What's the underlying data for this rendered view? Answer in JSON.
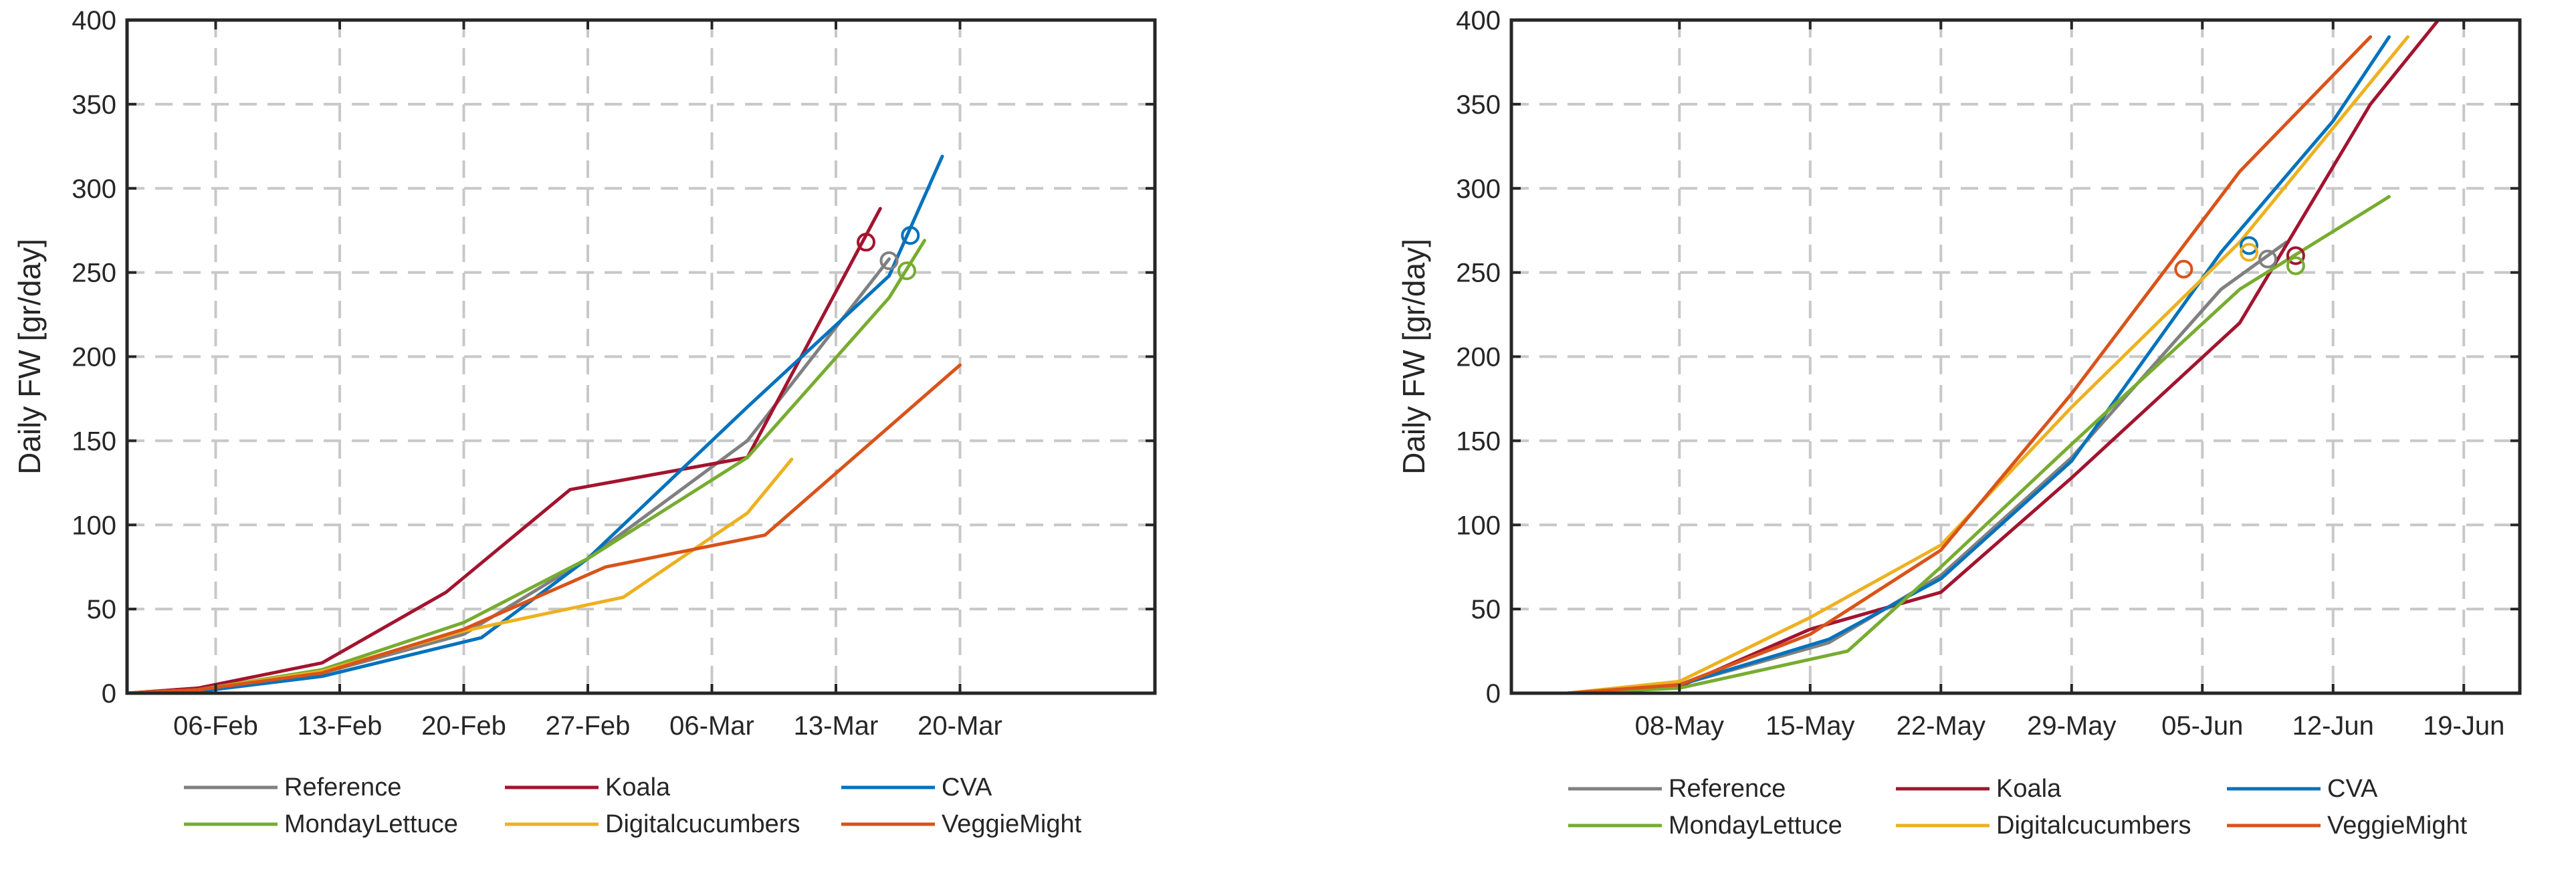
{
  "chart_data": [
    {
      "type": "line",
      "ylabel": "Daily FW [gr/day]",
      "xlabel": "",
      "ylim": [
        0,
        400
      ],
      "yticks": [
        0,
        50,
        100,
        150,
        200,
        250,
        300,
        350,
        400
      ],
      "xlim": [
        -5,
        53
      ],
      "xticks": [
        {
          "day": 0,
          "label": "06-Feb"
        },
        {
          "day": 7,
          "label": "13-Feb"
        },
        {
          "day": 14,
          "label": "20-Feb"
        },
        {
          "day": 21,
          "label": "27-Feb"
        },
        {
          "day": 28,
          "label": "06-Mar"
        },
        {
          "day": 35,
          "label": "13-Mar"
        },
        {
          "day": 42,
          "label": "20-Mar"
        }
      ],
      "grid": true,
      "x_units": "days since 06-Feb",
      "series": [
        {
          "name": "Reference",
          "color": "#808080",
          "x": [
            -5,
            -1,
            6,
            14,
            21,
            30,
            38
          ],
          "y": [
            0,
            2,
            12,
            35,
            80,
            150,
            258
          ],
          "marker": {
            "x": 38,
            "y": 257
          }
        },
        {
          "name": "Koala",
          "color": "#a2142f",
          "x": [
            -5,
            -1,
            6,
            13,
            20,
            30,
            37.5
          ],
          "y": [
            0,
            3,
            18,
            60,
            121,
            140,
            288
          ],
          "marker": {
            "x": 36.7,
            "y": 268
          }
        },
        {
          "name": "CVA",
          "color": "#0072bd",
          "x": [
            -5,
            -1,
            6,
            15,
            21,
            30,
            38,
            41
          ],
          "y": [
            0,
            1,
            10,
            33,
            80,
            170,
            248,
            319
          ],
          "marker": {
            "x": 39.2,
            "y": 272
          }
        },
        {
          "name": "MondayLettuce",
          "color": "#77ac30",
          "x": [
            -5,
            -1,
            6,
            14,
            21,
            30,
            38,
            40
          ],
          "y": [
            0,
            2,
            14,
            42,
            80,
            140,
            235,
            269
          ],
          "marker": {
            "x": 39,
            "y": 251
          }
        },
        {
          "name": "Digitalcucumbers",
          "color": "#edb120",
          "x": [
            -5,
            -1,
            6,
            14,
            23,
            30,
            32.5
          ],
          "y": [
            0,
            2,
            13,
            37,
            57,
            107,
            139
          ],
          "marker": null
        },
        {
          "name": "VeggieMight",
          "color": "#d95319",
          "x": [
            -5,
            -1,
            6,
            14,
            22,
            31,
            42
          ],
          "y": [
            0,
            2,
            12,
            38,
            75,
            94,
            195
          ],
          "marker": null
        }
      ]
    },
    {
      "type": "line",
      "ylabel": "Daily FW [gr/day]",
      "xlabel": "",
      "ylim": [
        0,
        400
      ],
      "yticks": [
        0,
        50,
        100,
        150,
        200,
        250,
        300,
        350,
        400
      ],
      "xlim": [
        -9,
        45
      ],
      "xticks": [
        {
          "day": 0,
          "label": "08-May"
        },
        {
          "day": 7,
          "label": "15-May"
        },
        {
          "day": 14,
          "label": "22-May"
        },
        {
          "day": 21,
          "label": "29-May"
        },
        {
          "day": 28,
          "label": "05-Jun"
        },
        {
          "day": 35,
          "label": "12-Jun"
        },
        {
          "day": 42,
          "label": "19-Jun"
        }
      ],
      "grid": true,
      "x_units": "days since 08-May",
      "series": [
        {
          "name": "Reference",
          "color": "#808080",
          "x": [
            -6,
            0,
            8,
            14,
            21,
            29,
            32.5
          ],
          "y": [
            0,
            5,
            30,
            70,
            140,
            240,
            268
          ],
          "marker": {
            "x": 31.5,
            "y": 258
          }
        },
        {
          "name": "Koala",
          "color": "#a2142f",
          "x": [
            -6,
            0,
            7,
            14,
            21,
            30,
            37,
            41
          ],
          "y": [
            0,
            4,
            38,
            60,
            128,
            220,
            350,
            405
          ],
          "marker": {
            "x": 33,
            "y": 260
          }
        },
        {
          "name": "CVA",
          "color": "#0072bd",
          "x": [
            -6,
            0,
            8,
            14,
            21,
            29,
            35,
            38
          ],
          "y": [
            0,
            5,
            32,
            68,
            138,
            262,
            340,
            390
          ],
          "marker": {
            "x": 30.5,
            "y": 266
          }
        },
        {
          "name": "MondayLettuce",
          "color": "#77ac30",
          "x": [
            -6,
            0,
            9,
            14,
            21,
            30,
            38
          ],
          "y": [
            0,
            3,
            25,
            75,
            148,
            240,
            295
          ],
          "marker": {
            "x": 33,
            "y": 254
          }
        },
        {
          "name": "Digitalcucumbers",
          "color": "#edb120",
          "x": [
            -6,
            0,
            7,
            14,
            21,
            30,
            39
          ],
          "y": [
            0,
            7,
            45,
            88,
            170,
            268,
            390
          ],
          "marker": {
            "x": 30.5,
            "y": 262
          }
        },
        {
          "name": "VeggieMight",
          "color": "#d95319",
          "x": [
            -6,
            0,
            7,
            14,
            21,
            30,
            37
          ],
          "y": [
            0,
            5,
            35,
            85,
            178,
            310,
            390
          ],
          "marker": {
            "x": 27,
            "y": 252
          }
        }
      ]
    }
  ]
}
